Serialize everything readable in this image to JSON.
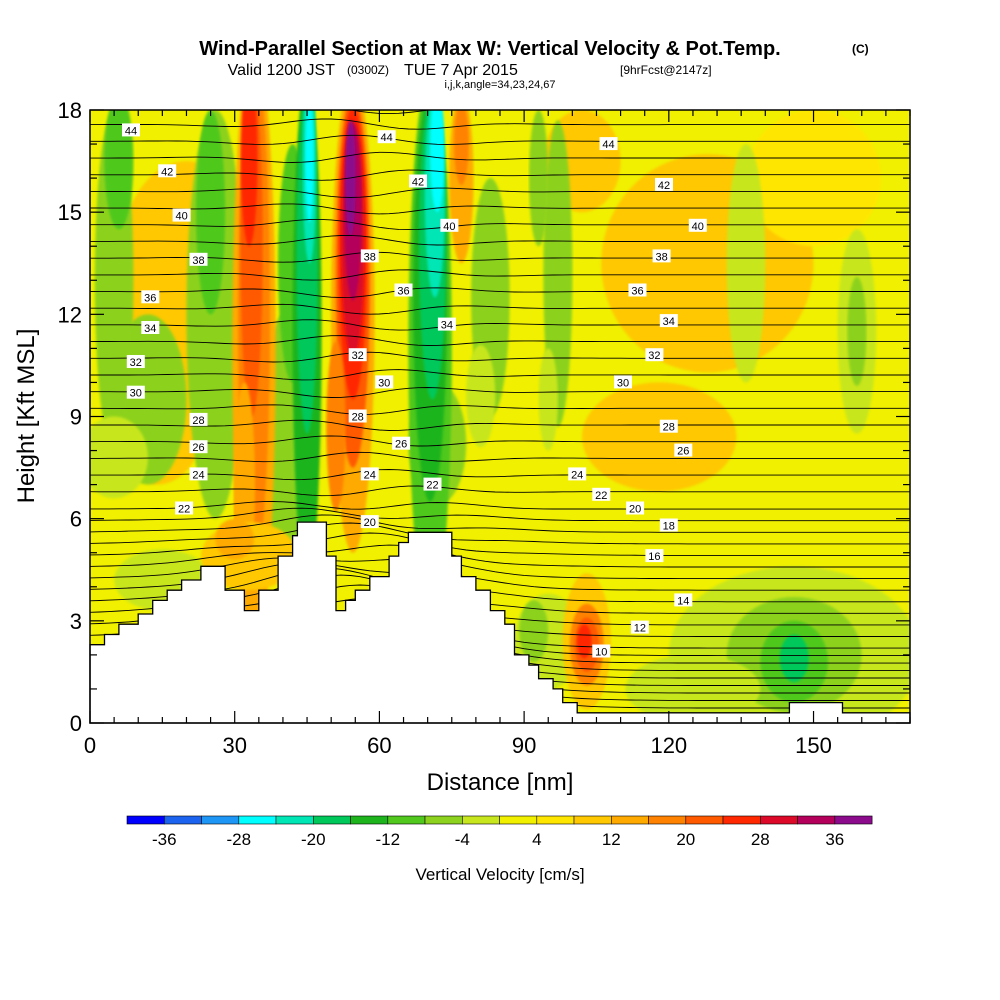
{
  "chart_data": {
    "type": "heatmap",
    "title": "Wind-Parallel Section at Max W: Vertical Velocity & Pot.Temp.",
    "title_mark": "(C)",
    "subtitle": {
      "valid": "Valid 1200 JST",
      "utc": "(0300Z)",
      "date": "TUE 7 Apr 2015",
      "fcst": "[9hrFcst@2147z]",
      "indices": "i,j,k,angle=34,23,24,67"
    },
    "xlabel": "Distance [nm]",
    "ylabel": "Height [Kft MSL]",
    "xlim": [
      0,
      170
    ],
    "ylim": [
      0,
      18
    ],
    "x_ticks": [
      "0",
      "30",
      "60",
      "90",
      "120",
      "150"
    ],
    "x_tick_values": [
      0,
      30,
      60,
      90,
      120,
      150
    ],
    "y_ticks": [
      "0",
      "3",
      "6",
      "9",
      "12",
      "15",
      "18"
    ],
    "y_tick_values": [
      0,
      3,
      6,
      9,
      12,
      15,
      18
    ],
    "colorbar": {
      "title": "Vertical Velocity [cm/s]",
      "tick_labels": [
        "-36",
        "-28",
        "-20",
        "-12",
        "-4",
        "4",
        "12",
        "20",
        "28",
        "36"
      ],
      "levels": [
        -40,
        -36,
        -32,
        -28,
        -24,
        -20,
        -16,
        -12,
        -8,
        -4,
        0,
        4,
        8,
        12,
        16,
        20,
        24,
        28,
        32,
        36,
        40
      ],
      "colors": [
        "#0000ff",
        "#1c64f0",
        "#1e96f5",
        "#00ffff",
        "#00e6b4",
        "#00c85a",
        "#1eb41e",
        "#50c81e",
        "#8cd21e",
        "#c8e61e",
        "#f0f000",
        "#ffe600",
        "#ffc800",
        "#ffaa00",
        "#ff8200",
        "#ff5a00",
        "#ff2800",
        "#dc0a28",
        "#b4005a",
        "#8c0a8c"
      ]
    },
    "theta_contour_labels": [
      {
        "label": "44",
        "x": 8.5,
        "y": 17.4
      },
      {
        "label": "44",
        "x": 61.5,
        "y": 17.2
      },
      {
        "label": "44",
        "x": 107.5,
        "y": 17.0
      },
      {
        "label": "42",
        "x": 16,
        "y": 16.2
      },
      {
        "label": "42",
        "x": 68,
        "y": 15.9
      },
      {
        "label": "42",
        "x": 119,
        "y": 15.8
      },
      {
        "label": "40",
        "x": 19,
        "y": 14.9
      },
      {
        "label": "40",
        "x": 74.5,
        "y": 14.6
      },
      {
        "label": "40",
        "x": 126,
        "y": 14.6
      },
      {
        "label": "38",
        "x": 22.5,
        "y": 13.6
      },
      {
        "label": "38",
        "x": 58,
        "y": 13.7
      },
      {
        "label": "38",
        "x": 118.5,
        "y": 13.7
      },
      {
        "label": "36",
        "x": 12.5,
        "y": 12.5
      },
      {
        "label": "36",
        "x": 65,
        "y": 12.7
      },
      {
        "label": "36",
        "x": 113.5,
        "y": 12.7
      },
      {
        "label": "34",
        "x": 12.5,
        "y": 11.6
      },
      {
        "label": "34",
        "x": 74,
        "y": 11.7
      },
      {
        "label": "34",
        "x": 120,
        "y": 11.8
      },
      {
        "label": "32",
        "x": 9.5,
        "y": 10.6
      },
      {
        "label": "32",
        "x": 55.5,
        "y": 10.8
      },
      {
        "label": "32",
        "x": 117,
        "y": 10.8
      },
      {
        "label": "30",
        "x": 9.5,
        "y": 9.7
      },
      {
        "label": "30",
        "x": 61,
        "y": 10.0
      },
      {
        "label": "30",
        "x": 110.5,
        "y": 10.0
      },
      {
        "label": "28",
        "x": 22.5,
        "y": 8.9
      },
      {
        "label": "28",
        "x": 55.5,
        "y": 9.0
      },
      {
        "label": "28",
        "x": 120,
        "y": 8.7
      },
      {
        "label": "26",
        "x": 22.5,
        "y": 8.1
      },
      {
        "label": "26",
        "x": 64.5,
        "y": 8.2
      },
      {
        "label": "26",
        "x": 123,
        "y": 8.0
      },
      {
        "label": "24",
        "x": 22.5,
        "y": 7.3
      },
      {
        "label": "24",
        "x": 58,
        "y": 7.3
      },
      {
        "label": "24",
        "x": 101,
        "y": 7.3
      },
      {
        "label": "22",
        "x": 19.5,
        "y": 6.3
      },
      {
        "label": "22",
        "x": 71,
        "y": 7.0
      },
      {
        "label": "22",
        "x": 106,
        "y": 6.7
      },
      {
        "label": "20",
        "x": 58,
        "y": 5.9
      },
      {
        "label": "20",
        "x": 113,
        "y": 6.3
      },
      {
        "label": "18",
        "x": 120,
        "y": 5.8
      },
      {
        "label": "16",
        "x": 117,
        "y": 4.9
      },
      {
        "label": "14",
        "x": 123,
        "y": 3.6
      },
      {
        "label": "12",
        "x": 114,
        "y": 2.8
      },
      {
        "label": "10",
        "x": 106,
        "y": 2.1
      }
    ],
    "terrain": [
      [
        0,
        2.3
      ],
      [
        3,
        2.3
      ],
      [
        3,
        2.6
      ],
      [
        6,
        2.6
      ],
      [
        6,
        2.9
      ],
      [
        10,
        2.9
      ],
      [
        10,
        3.2
      ],
      [
        13,
        3.2
      ],
      [
        13,
        3.6
      ],
      [
        16,
        3.6
      ],
      [
        16,
        3.9
      ],
      [
        19,
        3.9
      ],
      [
        19,
        4.2
      ],
      [
        23,
        4.2
      ],
      [
        23,
        4.6
      ],
      [
        28,
        4.6
      ],
      [
        28,
        3.9
      ],
      [
        32,
        3.9
      ],
      [
        32,
        3.3
      ],
      [
        35,
        3.3
      ],
      [
        35,
        3.9
      ],
      [
        39,
        3.9
      ],
      [
        39,
        4.9
      ],
      [
        42,
        4.9
      ],
      [
        42,
        5.5
      ],
      [
        43,
        5.5
      ],
      [
        43,
        5.9
      ],
      [
        49,
        5.9
      ],
      [
        49,
        4.9
      ],
      [
        51,
        4.9
      ],
      [
        51,
        3.3
      ],
      [
        53,
        3.3
      ],
      [
        53,
        3.6
      ],
      [
        55,
        3.6
      ],
      [
        55,
        3.9
      ],
      [
        58,
        3.9
      ],
      [
        58,
        4.3
      ],
      [
        62,
        4.3
      ],
      [
        62,
        4.9
      ],
      [
        64,
        4.9
      ],
      [
        64,
        5.3
      ],
      [
        66,
        5.3
      ],
      [
        66,
        5.6
      ],
      [
        75,
        5.6
      ],
      [
        75,
        4.9
      ],
      [
        77,
        4.9
      ],
      [
        77,
        4.3
      ],
      [
        80,
        4.3
      ],
      [
        80,
        3.9
      ],
      [
        83,
        3.9
      ],
      [
        83,
        3.3
      ],
      [
        86,
        3.3
      ],
      [
        86,
        2.9
      ],
      [
        88,
        2.9
      ],
      [
        88,
        2.0
      ],
      [
        91,
        2.0
      ],
      [
        91,
        1.7
      ],
      [
        93,
        1.7
      ],
      [
        93,
        1.3
      ],
      [
        96,
        1.3
      ],
      [
        96,
        1.0
      ],
      [
        98,
        1.0
      ],
      [
        98,
        0.6
      ],
      [
        101,
        0.6
      ],
      [
        101,
        0.3
      ],
      [
        145,
        0.3
      ],
      [
        145,
        0.6
      ],
      [
        156,
        0.6
      ],
      [
        156,
        0.3
      ],
      [
        170,
        0.3
      ],
      [
        170,
        0
      ],
      [
        0,
        0
      ]
    ]
  }
}
